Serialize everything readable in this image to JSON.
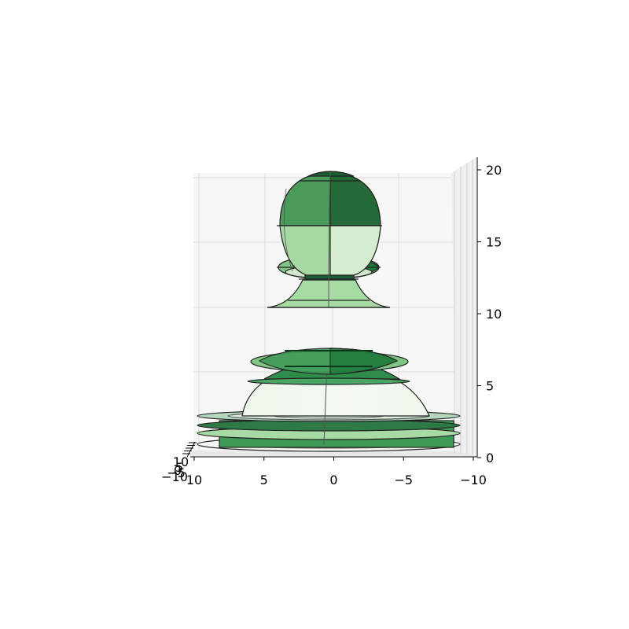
{
  "chart_data": {
    "type": "3d-surface",
    "title": "",
    "xlabel": "",
    "ylabel": "",
    "zlabel": "",
    "colormap": "Greens",
    "grid": true,
    "x_ticks": [
      "10",
      "5",
      "0",
      "−5",
      "−10"
    ],
    "xlim": [
      10,
      -10
    ],
    "y_ticks": [
      "10",
      "5",
      "0",
      "−5",
      "−10"
    ],
    "ylim": [
      10,
      -10
    ],
    "z_ticks": [
      "0",
      "5",
      "10",
      "15",
      "20"
    ],
    "zlim": [
      0,
      20
    ],
    "pane_color": "#f2f2f2",
    "edge_color": "#222222",
    "surface_colors": [
      "#0b4d24",
      "#1f7a3d",
      "#3f9a57",
      "#7fc583",
      "#a8dba4",
      "#d4edcf",
      "#eef7ec"
    ]
  }
}
